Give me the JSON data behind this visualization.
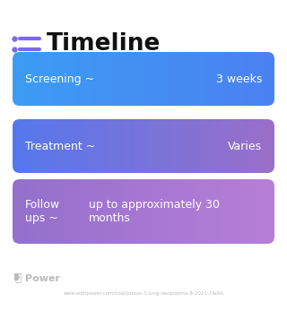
{
  "title": "Timeline",
  "title_color": "#111111",
  "background_color": "#ffffff",
  "icon_color": "#7b68ee",
  "rows": [
    {
      "label": "Screening ~",
      "value": "3 weeks",
      "value_multiline": false,
      "color_left": "#3d9cf5",
      "color_right": "#4a82f0"
    },
    {
      "label": "Treatment ~",
      "value": "Varies",
      "value_multiline": false,
      "color_left": "#5578ee",
      "color_right": "#9b6fc8"
    },
    {
      "label": "Follow\nups ~",
      "value": "up to approximately 30\nmonths",
      "value_multiline": true,
      "color_left": "#9370cc",
      "color_right": "#b87fd8"
    }
  ],
  "footer_logo_color": "#bbbbbb",
  "footer_logo_text": "▷ Power",
  "footer_text": "www.withpower.com/trial/phase-3-lung-neoplasms-8-2021-1fe0d",
  "footer_text_color": "#bbbbbb"
}
